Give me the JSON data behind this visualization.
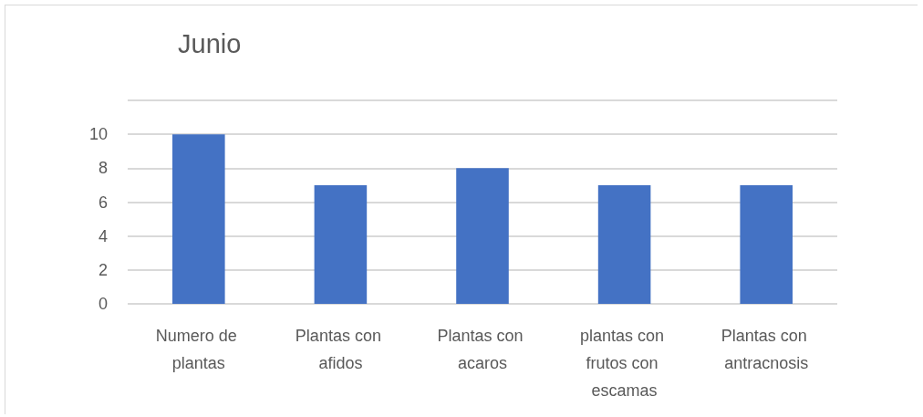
{
  "chart_data": {
    "type": "bar",
    "title": "Junio",
    "categories": [
      "Numero de plantas",
      "Plantas con afidos",
      "Plantas con acaros",
      "plantas con frutos con escamas",
      "Plantas con antracnosis"
    ],
    "values": [
      10,
      7,
      8,
      7,
      7
    ],
    "color": "#4472c4",
    "ylim": [
      0,
      12
    ],
    "yticks": [
      0,
      2,
      4,
      6,
      8,
      10,
      {
        "value": 12,
        "label": null
      }
    ],
    "grid": "y"
  }
}
